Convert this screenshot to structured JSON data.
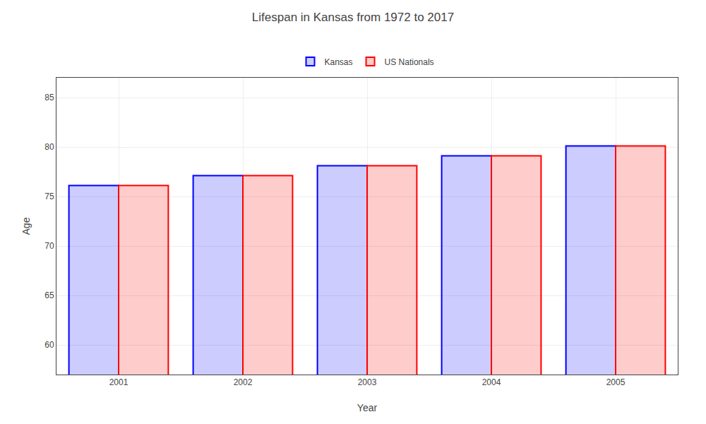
{
  "chart_data": {
    "type": "bar",
    "title": "Lifespan in Kansas from 1972 to 2017",
    "x_label": "Year",
    "y_label": "Age",
    "categories": [
      "2001",
      "2002",
      "2003",
      "2004",
      "2005"
    ],
    "series": [
      {
        "name": "Kansas",
        "color": "#0000ff",
        "values": [
          76.1,
          77.1,
          78.1,
          79.1,
          80.1
        ]
      },
      {
        "name": "US Nationals",
        "color": "#ff0000",
        "values": [
          76.1,
          77.1,
          78.1,
          79.1,
          80.1
        ]
      }
    ],
    "ylim": [
      57,
      87
    ],
    "yticks": [
      60,
      65,
      70,
      75,
      80,
      85
    ],
    "grid": true,
    "legend": "top"
  }
}
